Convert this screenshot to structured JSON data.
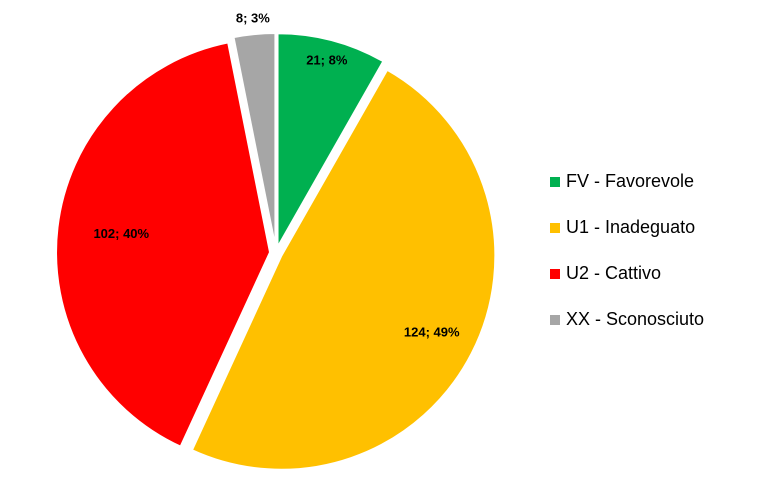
{
  "chart_data": {
    "type": "pie",
    "categories": [
      "FV - Favorevole",
      "U1 - Inadeguato",
      "U2 - Cattivo",
      "XX - Sconosciuto"
    ],
    "values": [
      21,
      124,
      102,
      8
    ],
    "value_labels": [
      "21; 8%",
      "124; 49%",
      "102; 40%",
      "8; 3%"
    ],
    "colors": [
      "#00b050",
      "#ffc000",
      "#ff0000",
      "#a6a6a6"
    ],
    "legend": "right"
  }
}
